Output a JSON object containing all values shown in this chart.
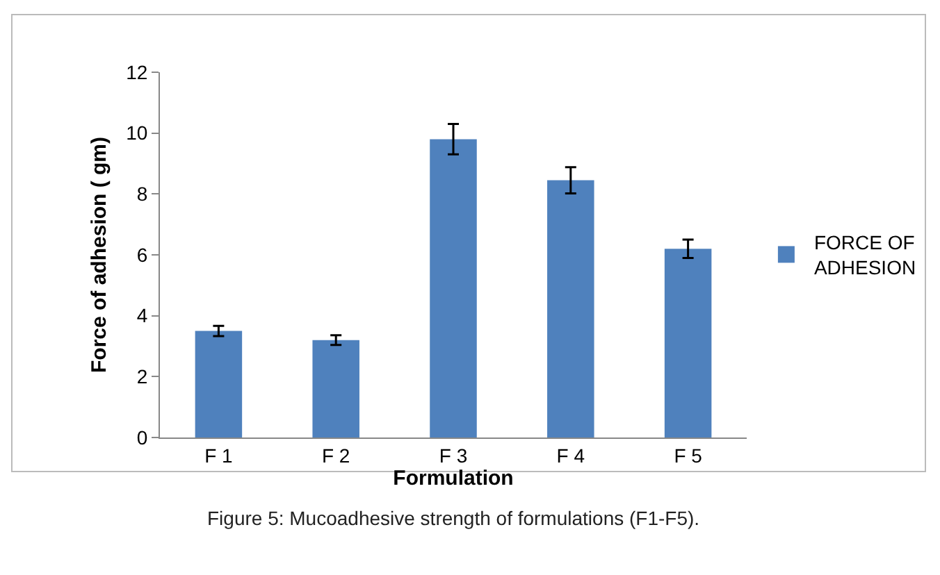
{
  "chart_data": {
    "type": "bar",
    "xlabel": "Formulation",
    "ylabel": "Force of adhesion ( gm)",
    "categories": [
      "F 1",
      "F 2",
      "F 3",
      "F 4",
      "F 5"
    ],
    "series": [
      {
        "name": "FORCE OF ADHESION",
        "color": "#4f81bd",
        "values": [
          3.5,
          3.2,
          9.8,
          8.45,
          6.2
        ],
        "errors": [
          0.17,
          0.16,
          0.5,
          0.43,
          0.3
        ]
      }
    ],
    "ylim": [
      0,
      12
    ],
    "yticks": [
      0,
      2,
      4,
      6,
      8,
      10,
      12
    ],
    "grid": false,
    "legend": "right",
    "annotations": [
      "Figure 5: Mucoadhesive strength of formulations (F1-F5)."
    ]
  }
}
